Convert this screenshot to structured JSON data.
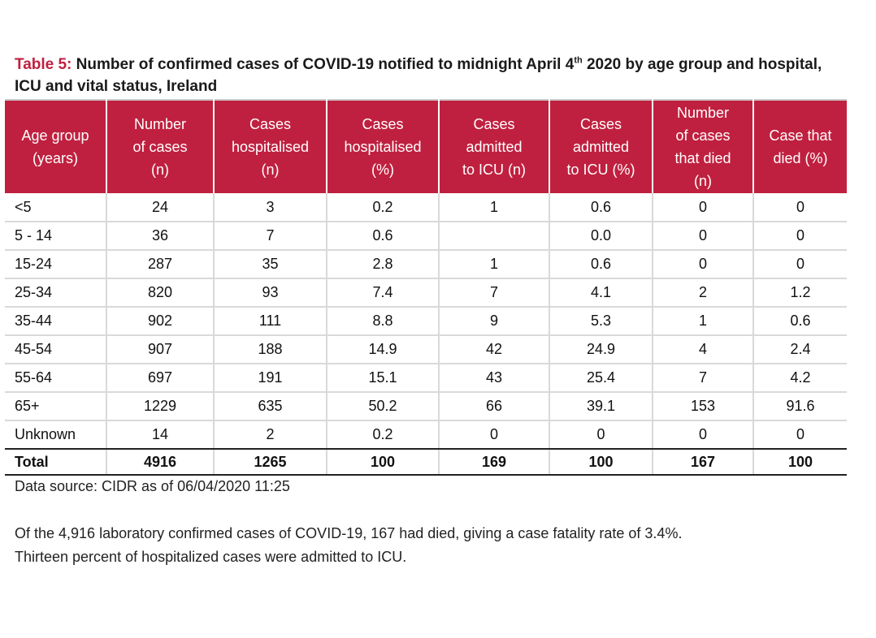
{
  "caption": {
    "label": "Table 5:",
    "text_before_sup": "Number of confirmed cases of COVID-19 notified to midnight April 4",
    "sup": "th",
    "text_after_sup": "2020 by age group and hospital, ICU and vital status, Ireland"
  },
  "table": {
    "headers": [
      [
        "Age group",
        "(years)"
      ],
      [
        "Number",
        "of cases",
        "(n)"
      ],
      [
        "Cases",
        "hospitalised",
        "(n)"
      ],
      [
        "Cases",
        "hospitalised",
        "(%)"
      ],
      [
        "Cases",
        "admitted",
        "to ICU (n)"
      ],
      [
        "Cases",
        "admitted",
        "to ICU (%)"
      ],
      [
        "Number",
        "of cases",
        "that died",
        "(n)"
      ],
      [
        "Case that",
        "died (%)"
      ]
    ],
    "rows": [
      [
        "<5",
        "24",
        "3",
        "0.2",
        "1",
        "0.6",
        "0",
        "0"
      ],
      [
        "5 - 14",
        "36",
        "7",
        "0.6",
        "",
        "0.0",
        "0",
        "0"
      ],
      [
        "15-24",
        "287",
        "35",
        "2.8",
        "1",
        "0.6",
        "0",
        "0"
      ],
      [
        "25-34",
        "820",
        "93",
        "7.4",
        "7",
        "4.1",
        "2",
        "1.2"
      ],
      [
        "35-44",
        "902",
        "111",
        "8.8",
        "9",
        "5.3",
        "1",
        "0.6"
      ],
      [
        "45-54",
        "907",
        "188",
        "14.9",
        "42",
        "24.9",
        "4",
        "2.4"
      ],
      [
        "55-64",
        "697",
        "191",
        "15.1",
        "43",
        "25.4",
        "7",
        "4.2"
      ],
      [
        "65+",
        "1229",
        "635",
        "50.2",
        "66",
        "39.1",
        "153",
        "91.6"
      ],
      [
        "Unknown",
        "14",
        "2",
        "0.2",
        "0",
        "0",
        "0",
        "0"
      ]
    ],
    "total": [
      "Total",
      "4916",
      "1265",
      "100",
      "169",
      "100",
      "167",
      "100"
    ]
  },
  "source": "Data source: CIDR as of 06/04/2020 11:25",
  "note": {
    "line1": "Of the 4,916 laboratory confirmed cases of COVID-19, 167 had died, giving a case fatality rate of 3.4%.",
    "line2": "Thirteen percent of hospitalized cases were admitted to ICU."
  },
  "colors": {
    "header_background": "#c0203f",
    "caption_label": "#c0203f"
  }
}
